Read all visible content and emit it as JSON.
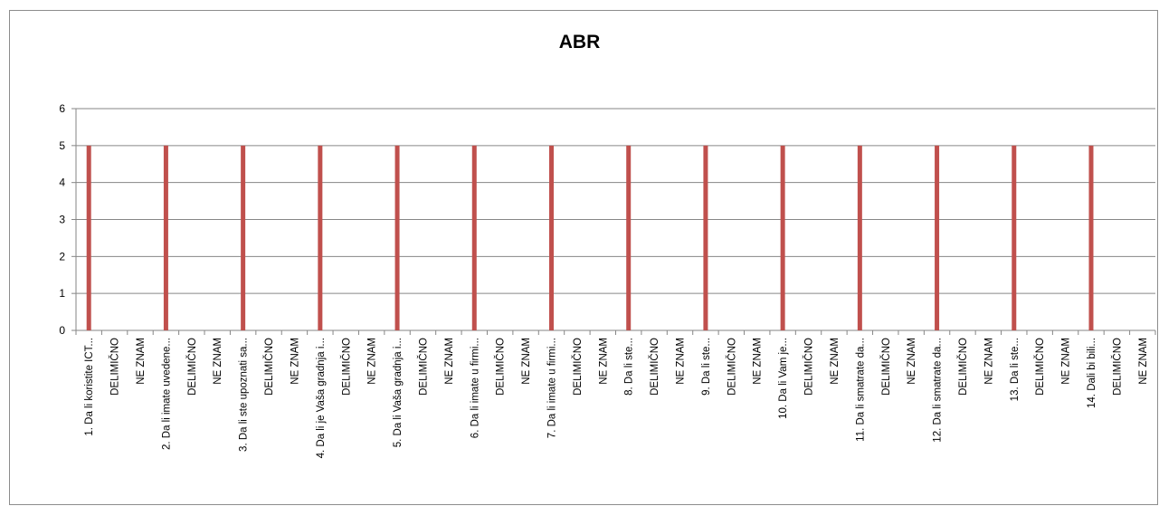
{
  "chart_data": {
    "type": "bar",
    "title": "ABR",
    "xlabel": "",
    "ylabel": "",
    "ylim": [
      0,
      6
    ],
    "yticks": [
      0,
      1,
      2,
      3,
      4,
      5,
      6
    ],
    "grid": true,
    "legend": "none",
    "categories": [
      "1. Da li koristite ICT...",
      "DELIMIČNO",
      "NE ZNAM",
      "2. Da li imate uvedene...",
      "DELIMIČNO",
      "NE ZNAM",
      "3. Da li ste upoznati sa...",
      "DELIMIČNO",
      "NE ZNAM",
      "4. Da li je Vaša gradnja i...",
      "DELIMIČNO",
      "NE ZNAM",
      "5. Da li Vaša gradnja i...",
      "DELIMIČNO",
      "NE ZNAM",
      "6. Da li imate u firmi...",
      "DELIMIČNO",
      "NE ZNAM",
      "7. Da li imate u firmi...",
      "DELIMIČNO",
      "NE ZNAM",
      "8. Da li ste...",
      "DELIMIČNO",
      "NE ZNAM",
      "9. Da li ste...",
      "DELIMIČNO",
      "NE ZNAM",
      "10.        Da li Vam je...",
      "DELIMIČNO",
      "NE ZNAM",
      "11.        Da li smatrate da...",
      "DELIMIČNO",
      "NE ZNAM",
      "12.        Da li smatrate da...",
      "DELIMIČNO",
      "NE ZNAM",
      "13.        Da li ste...",
      "DELIMIČNO",
      "NE ZNAM",
      "14.        Dali bi bili...",
      "DELIMIČNO",
      "NE ZNAM"
    ],
    "series": [
      {
        "values": [
          5,
          0,
          0,
          5,
          0,
          0,
          5,
          0,
          0,
          5,
          0,
          0,
          5,
          0,
          0,
          5,
          0,
          0,
          5,
          0,
          0,
          5,
          0,
          0,
          5,
          0,
          0,
          5,
          0,
          0,
          5,
          0,
          0,
          5,
          0,
          0,
          5,
          0,
          0,
          5,
          0,
          0
        ]
      }
    ],
    "colors": {
      "bar": "#c0504d",
      "grid": "#868686",
      "axis": "#868686"
    }
  }
}
